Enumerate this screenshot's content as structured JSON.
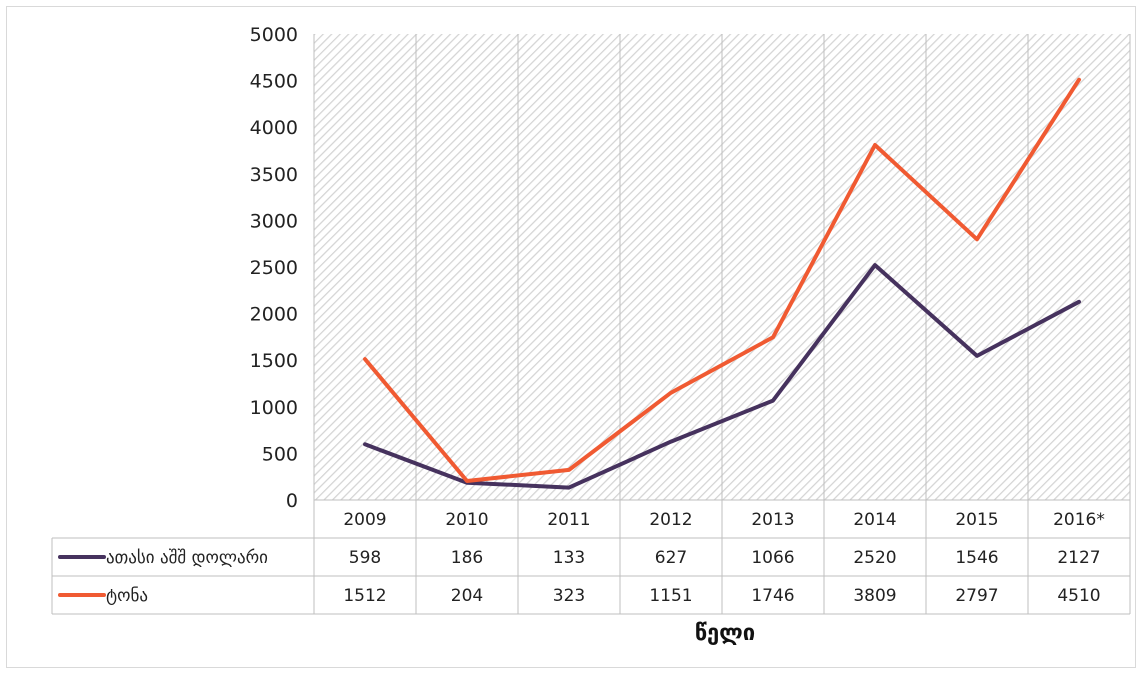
{
  "chart_data": {
    "type": "line",
    "title": "",
    "xlabel": "წელი",
    "ylabel": "",
    "categories": [
      "2009",
      "2010",
      "2011",
      "2012",
      "2013",
      "2014",
      "2015",
      "2016*"
    ],
    "ylim": [
      0,
      5000
    ],
    "yticks": [
      0,
      500,
      1000,
      1500,
      2000,
      2500,
      3000,
      3500,
      4000,
      4500,
      5000
    ],
    "grid": false,
    "background_pattern": "diagonal-hatch",
    "legend": "data-table-left",
    "data_table": true,
    "series": [
      {
        "name": "ათასი აშშ დოლარი",
        "color": "#46325e",
        "values": [
          598,
          186,
          133,
          627,
          1066,
          2520,
          1546,
          2127
        ]
      },
      {
        "name": "ტონა",
        "color": "#f05a32",
        "values": [
          1512,
          204,
          323,
          1151,
          1746,
          3809,
          2797,
          4510
        ]
      }
    ]
  }
}
